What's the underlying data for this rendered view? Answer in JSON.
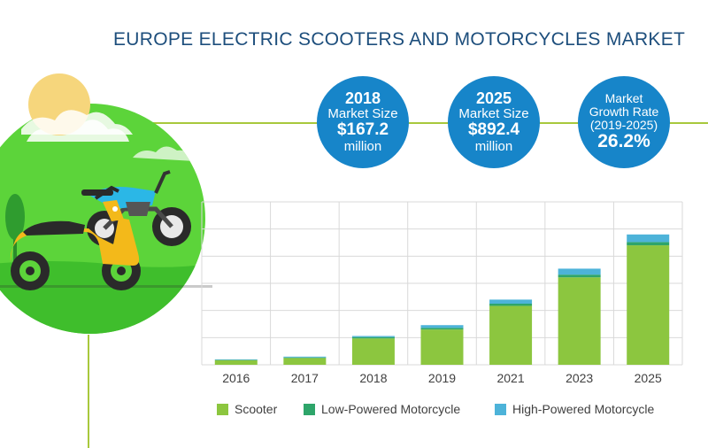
{
  "title": "EUROPE ELECTRIC SCOOTERS AND MOTORCYCLES MARKET",
  "stats": [
    {
      "lines": [
        "2018",
        "Market Size",
        "$167.2",
        "million"
      ]
    },
    {
      "lines": [
        "2025",
        "Market Size",
        "$892.4",
        "million"
      ]
    },
    {
      "lines": [
        "Market",
        "Growth Rate",
        "(2019-2025)",
        "26.2%"
      ]
    }
  ],
  "colors": {
    "scooter": "#8cc63f",
    "low_powered": "#2ea56a",
    "high_powered": "#4db3d9",
    "accent_line": "#a8c83c",
    "stat_circle": "#1785c9",
    "title": "#1d4e7c"
  },
  "chart_data": {
    "type": "bar",
    "stacked": true,
    "categories": [
      "2016",
      "2017",
      "2018",
      "2019",
      "2021",
      "2023",
      "2025"
    ],
    "series": [
      {
        "name": "Scooter",
        "values": [
          17,
          25,
          97,
          130,
          217,
          322,
          440
        ]
      },
      {
        "name": "Low-Powered Motorcycle",
        "values": [
          1,
          2,
          5,
          6,
          8,
          10,
          12
        ]
      },
      {
        "name": "High-Powered Motorcycle",
        "values": [
          2,
          3,
          4,
          10,
          15,
          22,
          28
        ]
      }
    ],
    "ylim": [
      0,
      600
    ],
    "grid": true,
    "legend": "bottom"
  }
}
